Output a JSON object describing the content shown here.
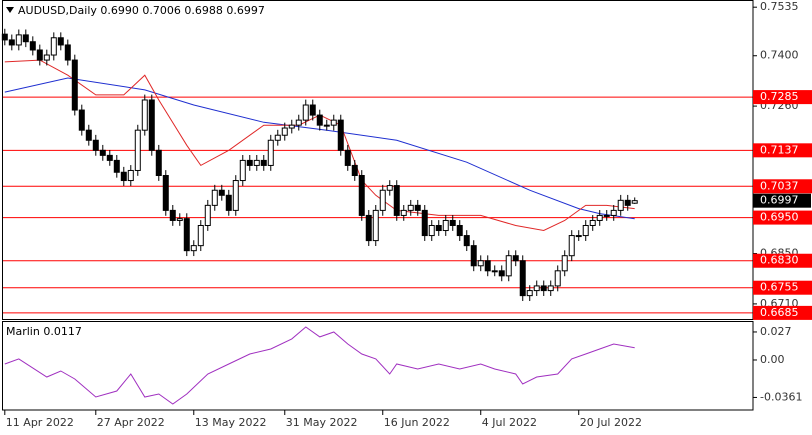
{
  "chart_data": {
    "type": "candlestick",
    "title": "AUDUSD,Daily  0.6990 0.7006 0.6988 0.6997",
    "xlim": [
      0.6,
      107.9
    ],
    "ylim": [
      0.6668,
      0.7555
    ],
    "xticks": [
      {
        "value": 1,
        "label": "11 Apr 2022"
      },
      {
        "value": 14,
        "label": "27 Apr 2022"
      },
      {
        "value": 28,
        "label": "13 May 2022"
      },
      {
        "value": 41,
        "label": "31 May 2022"
      },
      {
        "value": 55,
        "label": "16 Jun 2022"
      },
      {
        "value": 69,
        "label": "4 Jul 2022"
      },
      {
        "value": 83,
        "label": "20 Jul 2022"
      }
    ],
    "yticks": [
      {
        "value": 0.7535,
        "label": "0.7535"
      },
      {
        "value": 0.74,
        "label": "0.7400"
      },
      {
        "value": 0.726,
        "label": "0.7260"
      },
      {
        "value": 0.685,
        "label": "0.6850"
      },
      {
        "value": 0.671,
        "label": "0.6710"
      }
    ],
    "open": [
      0.746,
      0.7444,
      0.743,
      0.7458,
      0.7439,
      0.7416,
      0.7388,
      0.7402,
      0.745,
      0.743,
      0.7388,
      0.7249,
      0.7193,
      0.7165,
      0.7137,
      0.7123,
      0.7109,
      0.7076,
      0.7053,
      0.7081,
      0.7193,
      0.7277,
      0.7137,
      0.7067,
      0.697,
      0.6942,
      0.6947,
      0.6858,
      0.6872,
      0.6928,
      0.6984,
      0.7026,
      0.7012,
      0.697,
      0.7053,
      0.7109,
      0.7095,
      0.7109,
      0.7095,
      0.7165,
      0.7179,
      0.7199,
      0.7207,
      0.7221,
      0.7263,
      0.7235,
      0.7207,
      0.7207,
      0.7221,
      0.7137,
      0.7095,
      0.7067,
      0.6956,
      0.6886,
      0.697,
      0.7026,
      0.7039,
      0.6956,
      0.697,
      0.6984,
      0.697,
      0.69,
      0.6928,
      0.6914,
      0.6942,
      0.6928,
      0.69,
      0.6872,
      0.6816,
      0.683,
      0.6802,
      0.6802,
      0.6788,
      0.6844,
      0.683,
      0.6733,
      0.6747,
      0.676,
      0.6747,
      0.676,
      0.6802,
      0.6844,
      0.69,
      0.69,
      0.6928,
      0.6942,
      0.6956,
      0.6956,
      0.697,
      0.6998,
      0.699
    ],
    "high": [
      0.7475,
      0.7459,
      0.7473,
      0.7473,
      0.7454,
      0.7431,
      0.7417,
      0.7465,
      0.7465,
      0.7445,
      0.7403,
      0.7264,
      0.7208,
      0.718,
      0.7152,
      0.7138,
      0.7124,
      0.7091,
      0.7096,
      0.7208,
      0.7292,
      0.7292,
      0.7152,
      0.7082,
      0.6985,
      0.6962,
      0.6962,
      0.6887,
      0.6943,
      0.6999,
      0.7041,
      0.7041,
      0.7027,
      0.7068,
      0.7124,
      0.7124,
      0.7124,
      0.7124,
      0.718,
      0.7194,
      0.7214,
      0.7222,
      0.7236,
      0.7278,
      0.7278,
      0.725,
      0.7222,
      0.7236,
      0.7236,
      0.7152,
      0.711,
      0.7082,
      0.6971,
      0.6985,
      0.7041,
      0.7054,
      0.7054,
      0.6985,
      0.6999,
      0.6999,
      0.6985,
      0.6943,
      0.6943,
      0.6957,
      0.6957,
      0.6943,
      0.6915,
      0.6887,
      0.6845,
      0.6845,
      0.6817,
      0.6817,
      0.6859,
      0.6859,
      0.6845,
      0.6762,
      0.6775,
      0.6775,
      0.6775,
      0.6817,
      0.6859,
      0.6915,
      0.6915,
      0.6943,
      0.6957,
      0.6971,
      0.6971,
      0.6985,
      0.7013,
      0.7013,
      0.7006
    ],
    "low": [
      0.7429,
      0.7415,
      0.7415,
      0.7424,
      0.7401,
      0.7373,
      0.7373,
      0.7387,
      0.7415,
      0.7373,
      0.7234,
      0.7178,
      0.715,
      0.7122,
      0.7108,
      0.7094,
      0.7061,
      0.7038,
      0.7038,
      0.7066,
      0.7178,
      0.7122,
      0.7052,
      0.6955,
      0.6927,
      0.6927,
      0.6843,
      0.6843,
      0.6857,
      0.6913,
      0.6969,
      0.6997,
      0.6955,
      0.6955,
      0.7038,
      0.708,
      0.708,
      0.708,
      0.708,
      0.715,
      0.7164,
      0.7184,
      0.7192,
      0.7206,
      0.722,
      0.7192,
      0.7192,
      0.7192,
      0.7122,
      0.708,
      0.7052,
      0.6941,
      0.6871,
      0.6871,
      0.6955,
      0.7011,
      0.6941,
      0.6941,
      0.6955,
      0.6955,
      0.6885,
      0.6885,
      0.6899,
      0.6899,
      0.6913,
      0.6885,
      0.6857,
      0.6801,
      0.6801,
      0.6787,
      0.6787,
      0.6773,
      0.6773,
      0.6815,
      0.6718,
      0.6718,
      0.6732,
      0.6732,
      0.6732,
      0.6745,
      0.6787,
      0.6829,
      0.6885,
      0.6885,
      0.6913,
      0.6927,
      0.6941,
      0.6941,
      0.6955,
      0.6969,
      0.6988
    ],
    "close": [
      0.7444,
      0.743,
      0.7458,
      0.7439,
      0.7416,
      0.7388,
      0.7402,
      0.745,
      0.743,
      0.7388,
      0.7249,
      0.7193,
      0.7165,
      0.7137,
      0.7123,
      0.7109,
      0.7076,
      0.7053,
      0.7081,
      0.7193,
      0.7277,
      0.7137,
      0.7067,
      0.697,
      0.6942,
      0.6947,
      0.6858,
      0.6872,
      0.6928,
      0.6984,
      0.7026,
      0.7012,
      0.697,
      0.7053,
      0.7109,
      0.7095,
      0.7109,
      0.7095,
      0.7165,
      0.7179,
      0.7199,
      0.7207,
      0.7221,
      0.7263,
      0.7235,
      0.7207,
      0.7207,
      0.7221,
      0.7137,
      0.7095,
      0.7067,
      0.6956,
      0.6886,
      0.697,
      0.7026,
      0.7039,
      0.6956,
      0.697,
      0.6984,
      0.697,
      0.69,
      0.6928,
      0.6914,
      0.6942,
      0.6928,
      0.69,
      0.6872,
      0.6816,
      0.683,
      0.6802,
      0.6802,
      0.6788,
      0.6844,
      0.683,
      0.6733,
      0.6747,
      0.676,
      0.6747,
      0.676,
      0.6802,
      0.6844,
      0.69,
      0.69,
      0.6928,
      0.6942,
      0.6956,
      0.6956,
      0.697,
      0.6998,
      0.6984,
      0.6997
    ],
    "up_color": "#ffffff",
    "down_color": "#000000",
    "moving_averages": [
      {
        "color": "#1f2fd0",
        "x": [
          1,
          10,
          21,
          28,
          38,
          47,
          57,
          67,
          76,
          83,
          86,
          91
        ],
        "values": [
          0.7299,
          0.7338,
          0.7305,
          0.7263,
          0.7215,
          0.7193,
          0.7165,
          0.7104,
          0.7026,
          0.6975,
          0.6961,
          0.6947
        ]
      },
      {
        "color": "#e02828",
        "x": [
          1,
          6,
          10,
          14,
          18,
          21,
          23,
          27,
          29,
          33,
          38,
          43,
          46,
          49,
          52,
          54,
          57,
          63,
          69,
          74,
          78,
          81,
          84,
          87,
          91
        ],
        "values": [
          0.7383,
          0.7388,
          0.7346,
          0.7291,
          0.7291,
          0.7346,
          0.7277,
          0.7151,
          0.7095,
          0.7137,
          0.7207,
          0.7207,
          0.7235,
          0.7207,
          0.7053,
          0.7012,
          0.697,
          0.6956,
          0.6956,
          0.6928,
          0.6914,
          0.6942,
          0.6984,
          0.6984,
          0.6975
        ]
      }
    ],
    "levels": {
      "color": "#ff0000",
      "values": [
        {
          "value": 0.7285,
          "label": "0.7285"
        },
        {
          "value": 0.7137,
          "label": "0.7137"
        },
        {
          "value": 0.7037,
          "label": "0.7037"
        },
        {
          "value": 0.695,
          "label": "0.6950"
        },
        {
          "value": 0.683,
          "label": "0.6830"
        },
        {
          "value": 0.6755,
          "label": "0.6755"
        },
        {
          "value": 0.6685,
          "label": "0.6685"
        }
      ]
    },
    "last_price": {
      "value": 0.6997,
      "label": "0.6997"
    },
    "indicator": {
      "type": "line",
      "title": "Marlin 0.0117",
      "color": "#a030c0",
      "ylim": [
        -0.0482,
        0.0366
      ],
      "yticks": [
        0.027,
        {
          "value": 0,
          "label": "0.00"
        },
        -0.0361
      ],
      "x": [
        1,
        3,
        7,
        9,
        11,
        14,
        17,
        19,
        21,
        23,
        25,
        27,
        30,
        33,
        36,
        39,
        42,
        44,
        46,
        48,
        50,
        52,
        54,
        56,
        57,
        60,
        63,
        66,
        69,
        71,
        74,
        75,
        77,
        80,
        82,
        84,
        86,
        88,
        91
      ],
      "values": [
        -0.0039,
        0.001,
        -0.0164,
        -0.0106,
        -0.0183,
        -0.0357,
        -0.0299,
        -0.0135,
        -0.0357,
        -0.0328,
        -0.0424,
        -0.0328,
        -0.0135,
        -0.0039,
        0.0058,
        0.0106,
        0.0203,
        0.0318,
        0.0222,
        0.027,
        0.0154,
        0.0058,
        0.001,
        -0.0135,
        -0.0039,
        -0.0087,
        -0.0039,
        -0.0087,
        -0.0039,
        -0.0087,
        -0.0135,
        -0.0231,
        -0.0164,
        -0.0135,
        0.001,
        0.0058,
        0.0106,
        0.0154,
        0.0117
      ]
    }
  }
}
